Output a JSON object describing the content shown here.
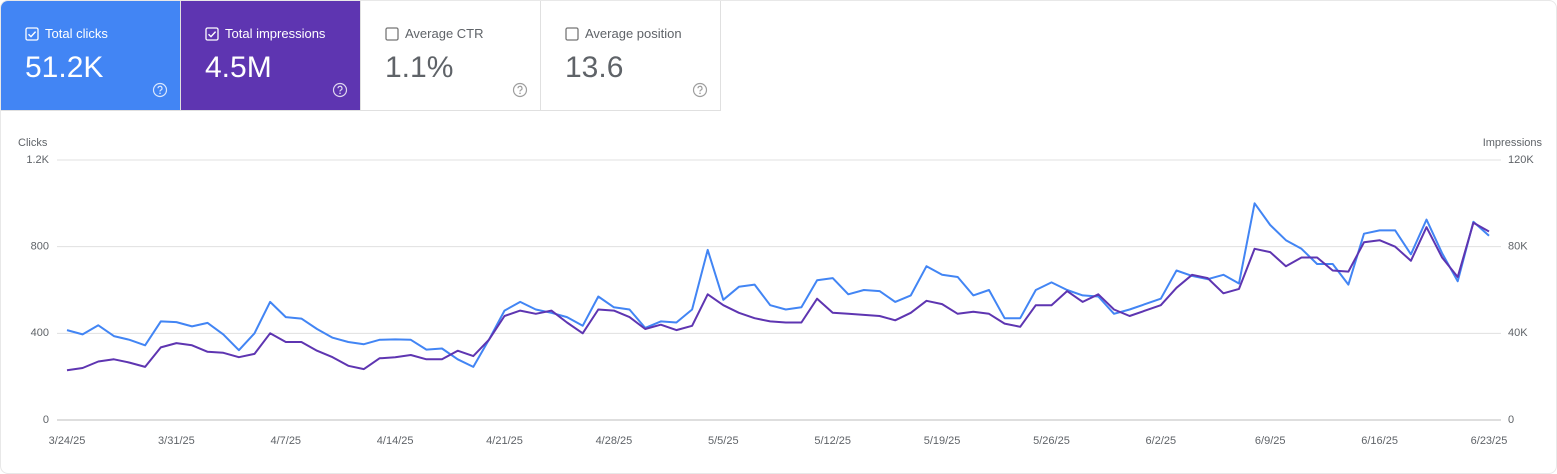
{
  "cards": [
    {
      "label": "Total clicks",
      "value": "51.2K",
      "checked": true,
      "color": "#4285f4"
    },
    {
      "label": "Total impressions",
      "value": "4.5M",
      "checked": true,
      "color": "#5e35b1"
    },
    {
      "label": "Average CTR",
      "value": "1.1%",
      "checked": false,
      "color": "#ffffff"
    },
    {
      "label": "Average position",
      "value": "13.6",
      "checked": false,
      "color": "#ffffff"
    }
  ],
  "chart_data": {
    "type": "line",
    "y_label": "Clicks",
    "y2_label": "Impressions",
    "categories": [
      "3/24/25",
      null,
      null,
      null,
      null,
      null,
      null,
      "3/31/25",
      null,
      null,
      null,
      null,
      null,
      null,
      "4/7/25",
      null,
      null,
      null,
      null,
      null,
      null,
      "4/14/25",
      null,
      null,
      null,
      null,
      null,
      null,
      "4/21/25",
      null,
      null,
      null,
      null,
      null,
      null,
      "4/28/25",
      null,
      null,
      null,
      null,
      null,
      null,
      "5/5/25",
      null,
      null,
      null,
      null,
      null,
      null,
      "5/12/25",
      null,
      null,
      null,
      null,
      null,
      null,
      "5/19/25",
      null,
      null,
      null,
      null,
      null,
      null,
      "5/26/25",
      null,
      null,
      null,
      null,
      null,
      null,
      "6/2/25",
      null,
      null,
      null,
      null,
      null,
      null,
      "6/9/25",
      null,
      null,
      null,
      null,
      null,
      null,
      "6/16/25",
      null,
      null,
      null,
      null,
      null,
      null,
      "6/23/25"
    ],
    "series": [
      {
        "color": "#4285f4",
        "values": [
          415,
          395,
          437,
          387,
          370,
          345,
          455,
          452,
          432,
          448,
          395,
          322,
          400,
          545,
          475,
          468,
          420,
          380,
          360,
          350,
          370,
          372,
          370,
          325,
          330,
          280,
          245,
          370,
          505,
          545,
          510,
          495,
          475,
          435,
          570,
          520,
          510,
          425,
          455,
          450,
          510,
          785,
          555,
          615,
          625,
          530,
          510,
          520,
          645,
          655,
          580,
          600,
          595,
          545,
          575,
          710,
          670,
          660,
          575,
          600,
          470,
          470,
          600,
          635,
          600,
          575,
          570,
          490,
          510,
          535,
          560,
          690,
          665,
          650,
          670,
          630,
          1000,
          900,
          830,
          790,
          720,
          720,
          625,
          860,
          875,
          875,
          765,
          925,
          770,
          640,
          915,
          850
        ]
      },
      {
        "color": "#5e35b1",
        "axis": "y2",
        "values": [
          23000,
          24000,
          27000,
          28000,
          26500,
          24500,
          33500,
          35500,
          34500,
          31500,
          31000,
          29000,
          30500,
          40000,
          36000,
          36000,
          32000,
          29000,
          25000,
          23500,
          28500,
          29000,
          30000,
          28000,
          28000,
          32000,
          29500,
          37000,
          48000,
          50500,
          49000,
          50500,
          45000,
          40000,
          51000,
          50500,
          47500,
          42000,
          44000,
          41500,
          43500,
          58000,
          53000,
          49500,
          47000,
          45500,
          45000,
          45000,
          56000,
          49500,
          49000,
          48500,
          48000,
          46000,
          49500,
          55000,
          53500,
          49000,
          50000,
          49000,
          44500,
          43000,
          53000,
          53000,
          59500,
          54500,
          58000,
          51000,
          48000,
          50500,
          53000,
          61000,
          67000,
          65500,
          58500,
          60500,
          79000,
          77500,
          71000,
          75000,
          75000,
          69000,
          68500,
          82000,
          83000,
          80000,
          73500,
          89000,
          75000,
          66000,
          91000,
          87000
        ]
      }
    ],
    "ylim": [
      0,
      1200
    ],
    "yticks": [
      0,
      400,
      800,
      {
        "value": 1200,
        "label": "1.2K"
      }
    ],
    "y2lim": [
      0,
      120000
    ],
    "y2ticks": [
      0,
      {
        "value": 40000,
        "label": "40K"
      },
      {
        "value": 80000,
        "label": "80K"
      },
      {
        "value": 120000,
        "label": "120K"
      }
    ],
    "grid": true
  }
}
